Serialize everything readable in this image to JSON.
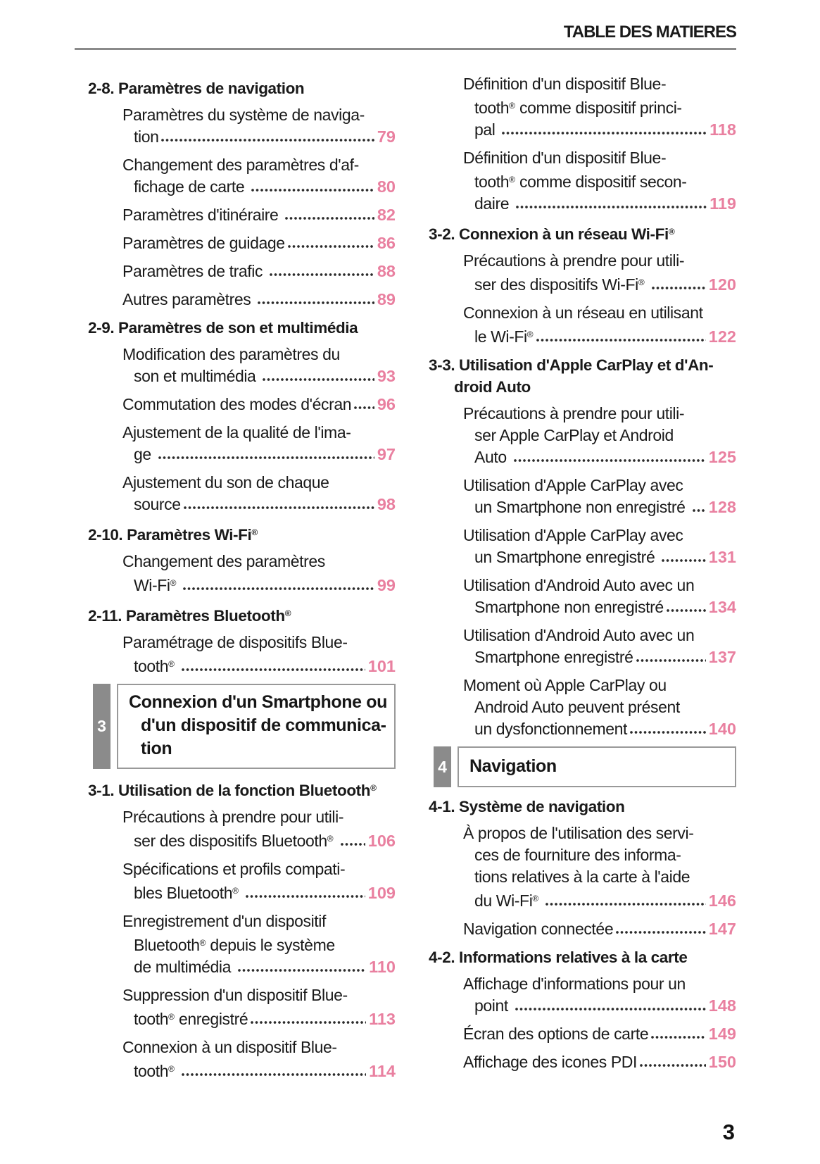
{
  "page": {
    "header_title": "TABLE DES MATIERES",
    "footer_page_number": "3",
    "colors": {
      "accent_pink": "#e980a0",
      "tab_gray": "#8b8b8b",
      "rule_gray": "#8a8a8a"
    }
  },
  "toc": {
    "columns": {
      "left": [
        {
          "type": "section",
          "header": [
            {
              "t": "2-8. Paramètres de navigation"
            }
          ],
          "entries": [
            [
              {
                "t": "Paramètres du système de naviga-"
              },
              {
                "t": "tion",
                "p": "79"
              }
            ],
            [
              {
                "t": "Changement des paramètres d'af-"
              },
              {
                "t": "fichage de carte ",
                "p": "80"
              }
            ],
            [
              {
                "t": "Paramètres d'itinéraire ",
                "p": "82"
              }
            ],
            [
              {
                "t": "Paramètres de guidage",
                "p": "86"
              }
            ],
            [
              {
                "t": "Paramètres de trafic ",
                "p": "88"
              }
            ],
            [
              {
                "t": "Autres paramètres ",
                "p": "89"
              }
            ]
          ]
        },
        {
          "type": "section",
          "header": [
            {
              "t": "2-9. Paramètres de son et multimédia"
            }
          ],
          "entries": [
            [
              {
                "t": "Modification des paramètres du"
              },
              {
                "t": "son et multimédia ",
                "p": "93"
              }
            ],
            [
              {
                "t": "Commutation des modes d'écran",
                "p": "96"
              }
            ],
            [
              {
                "t": "Ajustement de la qualité de l'ima-"
              },
              {
                "t": "ge ",
                "p": "97"
              }
            ],
            [
              {
                "t": "Ajustement du son de chaque"
              },
              {
                "t": "source",
                "p": "98"
              }
            ]
          ]
        },
        {
          "type": "section",
          "header": [
            {
              "t": "2-10. Paramètres Wi-Fi®"
            }
          ],
          "entries": [
            [
              {
                "t": "Changement des paramètres"
              },
              {
                "t": "Wi-Fi® ",
                "p": "99"
              }
            ]
          ]
        },
        {
          "type": "section",
          "header": [
            {
              "t": "2-11. Paramètres Bluetooth®"
            }
          ],
          "entries": [
            [
              {
                "t": "Paramétrage de dispositifs Blue-"
              },
              {
                "t": "tooth® ",
                "p": "101"
              }
            ]
          ]
        },
        {
          "type": "chapter",
          "num": "3",
          "title_lines": [
            "Connexion d'un Smartphone ou",
            "d'un dispositif de communica-",
            "tion"
          ]
        },
        {
          "type": "section",
          "header": [
            {
              "t": "3-1. Utilisation de la fonction Bluetooth®"
            }
          ],
          "entries": [
            [
              {
                "t": "Précautions à prendre pour utili-"
              },
              {
                "t": "ser des dispositifs Bluetooth® ",
                "p": "106"
              }
            ],
            [
              {
                "t": "Spécifications et profils compati-"
              },
              {
                "t": "bles Bluetooth® ",
                "p": "109"
              }
            ],
            [
              {
                "t": "Enregistrement d'un dispositif"
              },
              {
                "t": "Bluetooth® depuis le système"
              },
              {
                "t": "de multimédia ",
                "p": "110"
              }
            ],
            [
              {
                "t": "Suppression d'un dispositif Blue-"
              },
              {
                "t": "tooth® enregistré",
                "p": "113"
              }
            ],
            [
              {
                "t": "Connexion à un dispositif Blue-"
              },
              {
                "t": "tooth® ",
                "p": "114"
              }
            ]
          ]
        }
      ],
      "right": [
        {
          "type": "entries",
          "entries": [
            [
              {
                "t": "Définition d'un dispositif Blue-"
              },
              {
                "t": "tooth® comme dispositif princi-"
              },
              {
                "t": "pal ",
                "p": "118"
              }
            ],
            [
              {
                "t": "Définition d'un dispositif Blue-"
              },
              {
                "t": "tooth® comme dispositif secon-"
              },
              {
                "t": "daire ",
                "p": "119"
              }
            ]
          ]
        },
        {
          "type": "section",
          "header": [
            {
              "t": "3-2. Connexion à un réseau Wi-Fi®"
            }
          ],
          "entries": [
            [
              {
                "t": "Précautions à prendre pour utili-"
              },
              {
                "t": "ser des dispositifs Wi-Fi® ",
                "p": "120"
              }
            ],
            [
              {
                "t": "Connexion à un réseau en utilisant"
              },
              {
                "t": "le Wi-Fi®",
                "p": "122"
              }
            ]
          ]
        },
        {
          "type": "section",
          "header": [
            {
              "t": "3-3. Utilisation d'Apple CarPlay et d'An-"
            },
            {
              "t": "droid Auto"
            }
          ],
          "entries": [
            [
              {
                "t": "Précautions à prendre pour utili-"
              },
              {
                "t": "ser Apple CarPlay et Android"
              },
              {
                "t": "Auto ",
                "p": "125"
              }
            ],
            [
              {
                "t": "Utilisation d'Apple CarPlay avec"
              },
              {
                "t": "un Smartphone non enregistré ",
                "p": "128"
              }
            ],
            [
              {
                "t": "Utilisation d'Apple CarPlay avec"
              },
              {
                "t": "un Smartphone enregistré ",
                "p": "131"
              }
            ],
            [
              {
                "t": "Utilisation d'Android Auto avec un"
              },
              {
                "t": "Smartphone non enregistré",
                "p": "134"
              }
            ],
            [
              {
                "t": "Utilisation d'Android Auto avec un"
              },
              {
                "t": "Smartphone enregistré",
                "p": "137"
              }
            ],
            [
              {
                "t": "Moment où Apple CarPlay ou"
              },
              {
                "t": "Android Auto peuvent présent"
              },
              {
                "t": "un dysfonctionnement",
                "p": "140"
              }
            ]
          ]
        },
        {
          "type": "chapter",
          "num": "4",
          "title_lines": [
            "Navigation"
          ]
        },
        {
          "type": "section",
          "header": [
            {
              "t": "4-1. Système de navigation"
            }
          ],
          "entries": [
            [
              {
                "t": "À propos de l'utilisation des servi-"
              },
              {
                "t": "ces de fourniture des informa-"
              },
              {
                "t": "tions relatives à la carte à l'aide"
              },
              {
                "t": "du Wi-Fi® ",
                "p": "146"
              }
            ],
            [
              {
                "t": "Navigation connectée",
                "p": "147"
              }
            ]
          ]
        },
        {
          "type": "section",
          "header": [
            {
              "t": "4-2. Informations relatives à la carte"
            }
          ],
          "entries": [
            [
              {
                "t": "Affichage d'informations pour un"
              },
              {
                "t": "point ",
                "p": "148"
              }
            ],
            [
              {
                "t": "Écran des options de carte",
                "p": "149"
              }
            ],
            [
              {
                "t": "Affichage des icones PDI",
                "p": "150"
              }
            ]
          ]
        }
      ]
    }
  }
}
